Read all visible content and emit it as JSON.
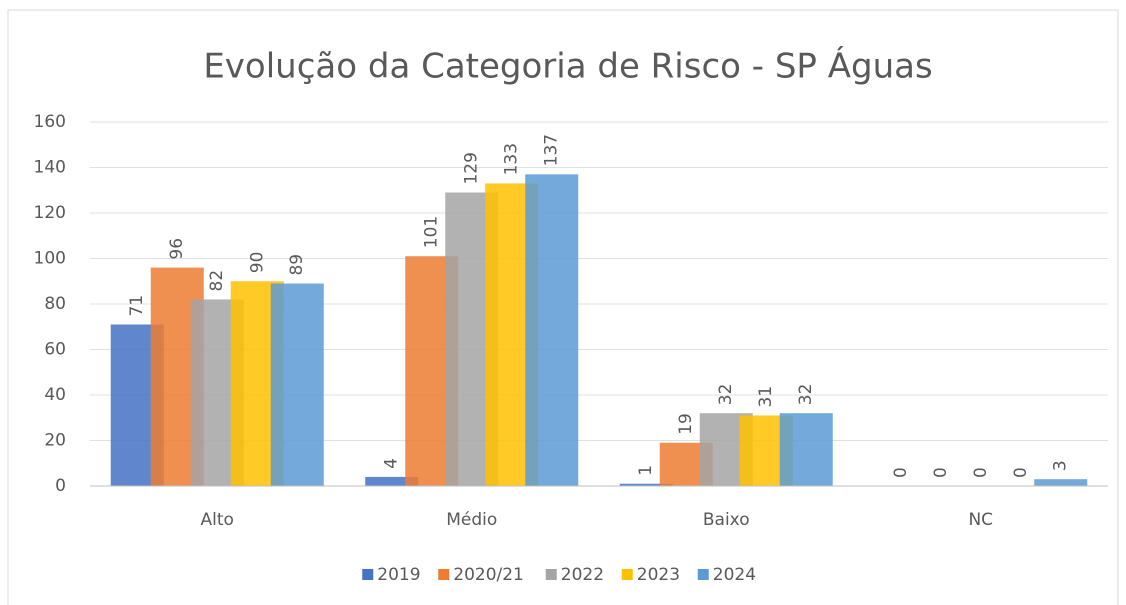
{
  "chart_data": {
    "type": "bar",
    "title": "Evolução da Categoria de Risco - SP Águas",
    "categories": [
      "Alto",
      "Médio",
      "Baixo",
      "NC"
    ],
    "series": [
      {
        "name": "2019",
        "color": "#4472c4",
        "values": [
          71,
          4,
          1,
          0
        ]
      },
      {
        "name": "2020/21",
        "color": "#ed7d31",
        "values": [
          96,
          101,
          19,
          0
        ]
      },
      {
        "name": "2022",
        "color": "#a5a5a5",
        "values": [
          82,
          129,
          32,
          0
        ]
      },
      {
        "name": "2023",
        "color": "#ffc000",
        "values": [
          90,
          133,
          31,
          0
        ]
      },
      {
        "name": "2024",
        "color": "#5b9bd5",
        "values": [
          89,
          137,
          32,
          3
        ]
      }
    ],
    "ylim": [
      0,
      160
    ],
    "yticks": [
      0,
      20,
      40,
      60,
      80,
      100,
      120,
      140,
      160
    ],
    "grid": true,
    "legend": "bottom"
  }
}
